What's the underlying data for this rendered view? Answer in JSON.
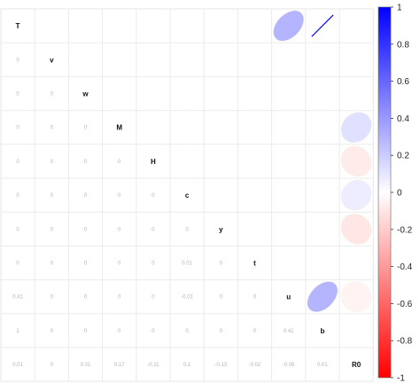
{
  "chart_data": {
    "type": "heatmap",
    "variables": [
      "T",
      "v",
      "w",
      "M",
      "H",
      "c",
      "y",
      "t",
      "u",
      "b",
      "R0"
    ],
    "lower_triangle_labels": [
      [],
      [
        "0"
      ],
      [
        "0",
        "0"
      ],
      [
        "0",
        "0",
        "0"
      ],
      [
        "0",
        "0",
        "0",
        "0"
      ],
      [
        "0",
        "0",
        "0",
        "0",
        "0"
      ],
      [
        "0",
        "0",
        "0",
        "0",
        "0",
        "0"
      ],
      [
        "0",
        "0",
        "0",
        "0",
        "0",
        "0.01",
        "0"
      ],
      [
        "0.41",
        "0",
        "0",
        "0",
        "0",
        "-0.01",
        "0",
        "0"
      ],
      [
        "1",
        "0",
        "0",
        "0",
        "0",
        "0",
        "0",
        "0",
        "0.41"
      ],
      [
        "0.01",
        "0",
        "0.01",
        "0.17",
        "-0.11",
        "0.1",
        "-0.13",
        "-0.02",
        "-0.06",
        "0.01"
      ]
    ],
    "upper_triangle_ellipses": [
      {
        "row": "T",
        "col": "u",
        "r": 0.41
      },
      {
        "row": "T",
        "col": "b",
        "r": 1
      },
      {
        "row": "M",
        "col": "R0",
        "r": 0.17
      },
      {
        "row": "H",
        "col": "R0",
        "r": -0.11
      },
      {
        "row": "c",
        "col": "R0",
        "r": 0.1
      },
      {
        "row": "y",
        "col": "R0",
        "r": -0.13
      },
      {
        "row": "u",
        "col": "R0",
        "r": -0.06
      },
      {
        "row": "u",
        "col": "b",
        "r": 0.41
      }
    ],
    "colorbar": {
      "range": [
        -1,
        1
      ],
      "ticks": [
        "1",
        "0.8",
        "0.6",
        "0.4",
        "0.2",
        "0",
        "-0.2",
        "-0.4",
        "-0.6",
        "-0.8",
        "-1"
      ],
      "colors": {
        "negative": "#ff0000",
        "zero": "#ffffff",
        "positive": "#0000ff"
      }
    },
    "grid": true,
    "legend_position": "right"
  }
}
